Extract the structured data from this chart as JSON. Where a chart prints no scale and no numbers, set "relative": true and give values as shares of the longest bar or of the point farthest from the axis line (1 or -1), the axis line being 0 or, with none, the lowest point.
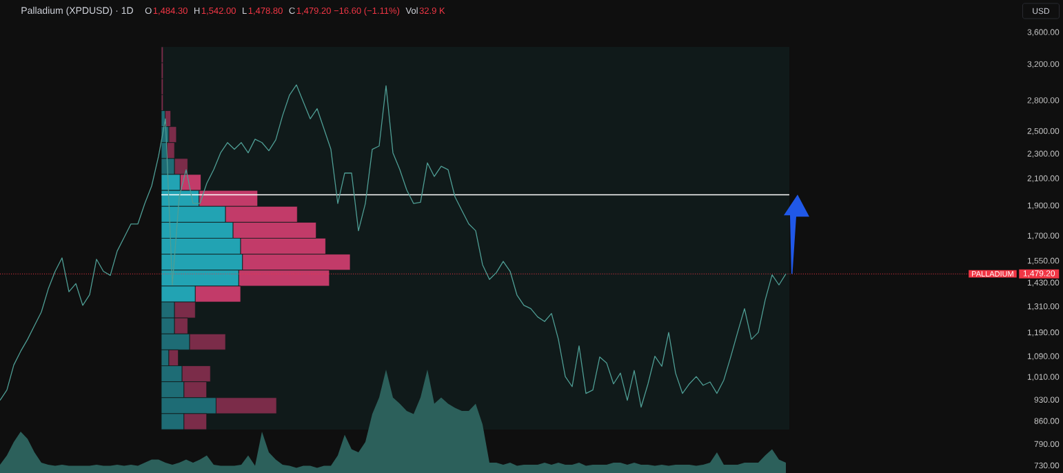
{
  "chart_data": [
    {
      "type": "line",
      "title": "Palladium (XPDUSD) · 1D",
      "ylabel": "USD",
      "annotations": [
        "O",
        "1,484.30",
        "H",
        "1,542.00",
        "L",
        "1,478.80",
        "C",
        "1,479.20 −16.60 (−1.11%)",
        "Vol",
        "32.9 K",
        "1,479.20"
      ],
      "categories": [
        null,
        null,
        null,
        null,
        null,
        null,
        null,
        null,
        null,
        null,
        null,
        null,
        null,
        null,
        null,
        null,
        null,
        null,
        null,
        null,
        null,
        null,
        null,
        null,
        null,
        null,
        null,
        null,
        null,
        null,
        null,
        null,
        null,
        null,
        null,
        null,
        null,
        null,
        null,
        null,
        null,
        null,
        null,
        null,
        null,
        null,
        null,
        null,
        null,
        null,
        null,
        null,
        null,
        null,
        null,
        null,
        null,
        null,
        null,
        null,
        null,
        null,
        null,
        null,
        null,
        null,
        null,
        null,
        null,
        null,
        null,
        null,
        null,
        null,
        null,
        null,
        null,
        null,
        null,
        null,
        null,
        null,
        null,
        null,
        null,
        null,
        null,
        null,
        null,
        null,
        null,
        null,
        null,
        null,
        null,
        null,
        null,
        null,
        null,
        null,
        null,
        null,
        null,
        null,
        null,
        null,
        null,
        null,
        null,
        null,
        null,
        null,
        null,
        null,
        null
      ],
      "series": [
        {
          "color": "#4f9e95",
          "values": [
            928,
            964,
            1057,
            1112,
            1162,
            1222,
            1285,
            1399,
            1493,
            1569,
            1385,
            1427,
            1317,
            1370,
            1561,
            1493,
            1471,
            1609,
            1691,
            1778,
            1778,
            1917,
            2045,
            2283,
            2620,
            1420,
            1965,
            2172,
            1917,
            1917,
            2066,
            2172,
            2311,
            2400,
            2341,
            2400,
            2311,
            2430,
            2400,
            2329,
            2424,
            2653,
            2860,
            2969,
            2789,
            2620,
            2720,
            2524,
            2341,
            1917,
            2145,
            2145,
            1734,
            1917,
            2341,
            2370,
            2960,
            2311,
            2172,
            2015,
            1917,
            1926,
            2227,
            2118,
            2199,
            2172,
            1965,
            1869,
            1778,
            1734,
            1530,
            1449,
            1486,
            1549,
            1493,
            1367,
            1317,
            1301,
            1262,
            1241,
            1278,
            1162,
            1013,
            976,
            1134,
            952,
            964,
            1089,
            1065,
            986,
            1026,
            928,
            1036,
            905,
            986,
            1092,
            1052,
            1192,
            1026,
            952,
            986,
            1013,
            981,
            993,
            952,
            1000,
            1089,
            1192,
            1301,
            1162,
            1192,
            1343,
            1474,
            1420,
            1479.2
          ]
        }
      ],
      "log": "y",
      "ylim": [
        710,
        4060
      ],
      "yticks": [
        {
          "value": 730,
          "label": "730.00"
        },
        {
          "value": 790,
          "label": "790.00"
        },
        {
          "value": 860,
          "label": "860.00"
        },
        {
          "value": 930,
          "label": "930.00"
        },
        {
          "value": 1010,
          "label": "1,010.00"
        },
        {
          "value": 1090,
          "label": "1,090.00"
        },
        {
          "value": 1190,
          "label": "1,190.00"
        },
        {
          "value": 1310,
          "label": "1,310.00"
        },
        {
          "value": 1430,
          "label": "1,430.00"
        },
        {
          "value": 1550,
          "label": "1,550.00"
        },
        {
          "value": 1700,
          "label": "1,700.00"
        },
        {
          "value": 1900,
          "label": "1,900.00"
        },
        {
          "value": 2100,
          "label": "2,100.00"
        },
        {
          "value": 2300,
          "label": "2,300.00"
        },
        {
          "value": 2500,
          "label": "2,500.00"
        },
        {
          "value": 2800,
          "label": "2,800.00"
        },
        {
          "value": 3200,
          "label": "3,200.00"
        },
        {
          "value": 3600,
          "label": "3,600.00"
        }
      ],
      "ref_lines": [
        {
          "axis": "y",
          "value": 1479.2,
          "label": "PALLADIUM",
          "color": "#f23645",
          "line_style": "dotted"
        },
        {
          "axis": "y",
          "value": 1980,
          "color": "#ffffff"
        }
      ],
      "tick_labels": "y"
    },
    {
      "type": "bar",
      "orientation": "horizontal",
      "stacked": true,
      "relative": true,
      "categories": [
        null,
        null,
        null,
        null,
        null,
        null,
        null,
        null,
        null,
        null,
        null,
        null,
        null,
        null,
        null,
        null,
        null,
        null,
        null,
        null,
        null,
        null,
        null,
        null
      ],
      "series": [
        {
          "colors": [
            "#1e6c75",
            "#1e6c75",
            "#1e6c75",
            "#1e6c75",
            "#1e6c75",
            "#1e6c75",
            "#1e6c75",
            "#1e6c75",
            "#22a3b3",
            "#22a3b3",
            "#22a3b3",
            "#22a3b3",
            "#22a3b3",
            "#22a3b3",
            "#22a3b3",
            "#22a3b3",
            "#1e6c75",
            "#1e6c75",
            "#1e6c75",
            "#1e6c75",
            "#1e6c75",
            "#1e6c75",
            "#1e6c75",
            "#1e6c75"
          ],
          "values": [
            0,
            0,
            0,
            0,
            0.02,
            0.04,
            0.03,
            0.07,
            0.1,
            0.2,
            0.34,
            0.38,
            0.42,
            0.43,
            0.41,
            0.18,
            0.07,
            0.07,
            0.15,
            0.04,
            0.11,
            0.12,
            0.29,
            0.12
          ]
        },
        {
          "colors": [
            "#7b2c49",
            "#7b2c49",
            "#7b2c49",
            "#7b2c49",
            "#7b2c49",
            "#7b2c49",
            "#7b2c49",
            "#7b2c49",
            "#c23b69",
            "#c23b69",
            "#c23b69",
            "#c23b69",
            "#c23b69",
            "#c23b69",
            "#c23b69",
            "#c23b69",
            "#7b2c49",
            "#7b2c49",
            "#7b2c49",
            "#7b2c49",
            "#7b2c49",
            "#7b2c49",
            "#7b2c49",
            "#7b2c49"
          ],
          "values": [
            0.01,
            0.01,
            0.01,
            0.01,
            0.03,
            0.04,
            0.04,
            0.07,
            0.11,
            0.31,
            0.38,
            0.44,
            0.45,
            0.57,
            0.48,
            0.24,
            0.11,
            0.07,
            0.19,
            0.05,
            0.15,
            0.12,
            0.32,
            0.12
          ]
        }
      ]
    },
    {
      "type": "area",
      "relative": true,
      "categories": [
        null,
        null,
        null,
        null,
        null,
        null,
        null,
        null,
        null,
        null,
        null,
        null,
        null,
        null,
        null,
        null,
        null,
        null,
        null,
        null,
        null,
        null,
        null,
        null,
        null,
        null,
        null,
        null,
        null,
        null,
        null,
        null,
        null,
        null,
        null,
        null,
        null,
        null,
        null,
        null,
        null,
        null,
        null,
        null,
        null,
        null,
        null,
        null,
        null,
        null,
        null,
        null,
        null,
        null,
        null,
        null,
        null,
        null,
        null,
        null,
        null,
        null,
        null,
        null,
        null,
        null,
        null,
        null,
        null,
        null,
        null,
        null,
        null,
        null,
        null,
        null,
        null,
        null,
        null,
        null,
        null,
        null,
        null,
        null,
        null,
        null,
        null,
        null,
        null,
        null,
        null,
        null,
        null,
        null,
        null,
        null,
        null,
        null,
        null,
        null,
        null,
        null,
        null,
        null,
        null,
        null,
        null,
        null,
        null,
        null,
        null,
        null,
        null,
        null,
        null
      ],
      "series": [
        {
          "color": "#2c605b",
          "values": [
            0.08,
            0.17,
            0.3,
            0.4,
            0.33,
            0.2,
            0.1,
            0.08,
            0.07,
            0.08,
            0.07,
            0.07,
            0.07,
            0.07,
            0.08,
            0.07,
            0.07,
            0.08,
            0.07,
            0.08,
            0.07,
            0.1,
            0.13,
            0.13,
            0.1,
            0.08,
            0.1,
            0.13,
            0.1,
            0.13,
            0.17,
            0.08,
            0.07,
            0.07,
            0.07,
            0.08,
            0.17,
            0.07,
            0.4,
            0.2,
            0.13,
            0.08,
            0.07,
            0.05,
            0.07,
            0.07,
            0.05,
            0.07,
            0.07,
            0.17,
            0.37,
            0.23,
            0.2,
            0.3,
            0.57,
            0.73,
            1,
            0.73,
            0.67,
            0.6,
            0.57,
            0.73,
            1,
            0.67,
            0.73,
            0.67,
            0.63,
            0.6,
            0.6,
            0.67,
            0.47,
            0.1,
            0.1,
            0.08,
            0.1,
            0.07,
            0.08,
            0.08,
            0.08,
            0.1,
            0.08,
            0.1,
            0.08,
            0.08,
            0.1,
            0.07,
            0.08,
            0.08,
            0.08,
            0.1,
            0.1,
            0.08,
            0.1,
            0.08,
            0.08,
            0.07,
            0.08,
            0.07,
            0.08,
            0.08,
            0.08,
            0.07,
            0.08,
            0.1,
            0.2,
            0.08,
            0.08,
            0.08,
            0.1,
            0.1,
            0.1,
            0.17,
            0.23,
            0.13,
            0.1
          ]
        }
      ]
    }
  ]
}
